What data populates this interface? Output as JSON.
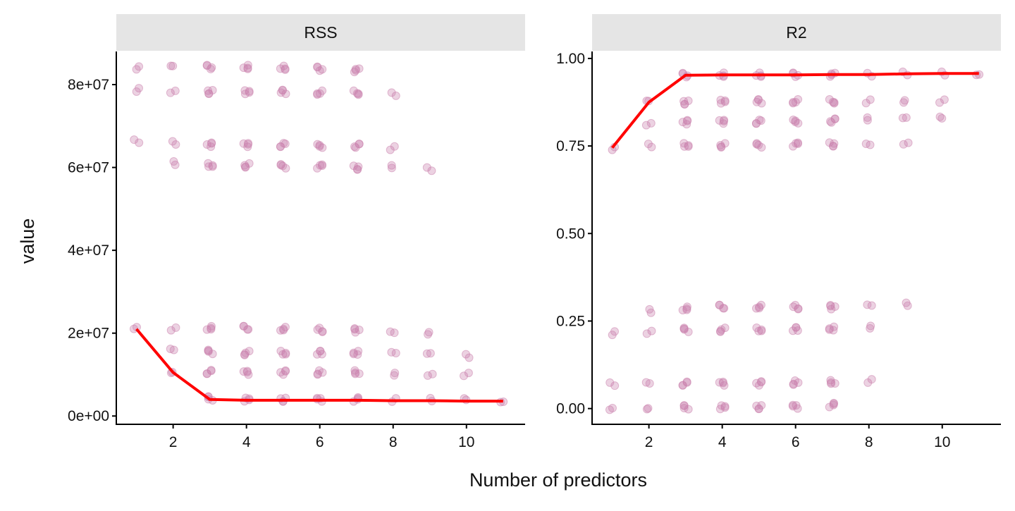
{
  "chart_data": {
    "type": "scatter",
    "xlabel": "Number of predictors",
    "ylabel": "value",
    "point_color": "#c97fab",
    "line_color": "#ff0000",
    "strip_color": "#e5e5e5",
    "panels": [
      {
        "title": "RSS",
        "xlim": [
          0.45,
          11.6
        ],
        "ylim": [
          -2000000.0,
          88000000.0
        ],
        "xticks": [
          2,
          4,
          6,
          8,
          10
        ],
        "xtick_labels": [
          "2",
          "4",
          "6",
          "8",
          "10"
        ],
        "yticks": [
          0,
          20000000.0,
          40000000.0,
          60000000.0,
          80000000.0
        ],
        "ytick_labels": [
          "0e+00",
          "2e+07",
          "4e+07",
          "6e+07",
          "8e+07"
        ],
        "best_line": {
          "x": [
            1,
            2,
            3,
            4,
            5,
            6,
            7,
            8,
            9,
            10,
            11
          ],
          "y": [
            21000000.0,
            10500000.0,
            4000000.0,
            3800000.0,
            3800000.0,
            3800000.0,
            3800000.0,
            3700000.0,
            3700000.0,
            3600000.0,
            3600000.0
          ]
        },
        "points": [
          [
            1,
            84200000.0
          ],
          [
            1,
            78700000.0
          ],
          [
            1,
            66200000.0
          ],
          [
            1,
            21500000.0
          ],
          [
            2,
            84200000.0
          ],
          [
            2,
            78500000.0
          ],
          [
            2,
            65800000.0
          ],
          [
            2,
            61000000.0
          ],
          [
            2,
            21200000.0
          ],
          [
            2,
            15800000.0
          ],
          [
            2,
            10800000.0
          ],
          [
            3,
            84200000.0
          ],
          [
            3,
            78300000.0
          ],
          [
            3,
            65500000.0
          ],
          [
            3,
            60500000.0
          ],
          [
            3,
            21200000.0
          ],
          [
            3,
            15500000.0
          ],
          [
            3,
            10700000.0
          ],
          [
            3,
            4200000.0
          ],
          [
            4,
            84200000.0
          ],
          [
            4,
            78200000.0
          ],
          [
            4,
            65500000.0
          ],
          [
            4,
            60500000.0
          ],
          [
            4,
            21200000.0
          ],
          [
            4,
            15200000.0
          ],
          [
            4,
            10500000.0
          ],
          [
            4,
            4000000.0
          ],
          [
            5,
            84000000.0
          ],
          [
            5,
            78200000.0
          ],
          [
            5,
            65500000.0
          ],
          [
            5,
            60300000.0
          ],
          [
            5,
            21000000.0
          ],
          [
            5,
            15200000.0
          ],
          [
            5,
            10500000.0
          ],
          [
            5,
            4000000.0
          ],
          [
            6,
            83800000.0
          ],
          [
            6,
            78000000.0
          ],
          [
            6,
            65200000.0
          ],
          [
            6,
            60300000.0
          ],
          [
            6,
            20800000.0
          ],
          [
            6,
            15200000.0
          ],
          [
            6,
            10500000.0
          ],
          [
            6,
            4000000.0
          ],
          [
            7,
            83500000.0
          ],
          [
            7,
            78000000.0
          ],
          [
            7,
            65200000.0
          ],
          [
            7,
            60000000.0
          ],
          [
            7,
            20700000.0
          ],
          [
            7,
            15200000.0
          ],
          [
            7,
            10500000.0
          ],
          [
            7,
            4000000.0
          ],
          [
            8,
            77800000.0
          ],
          [
            8,
            64700000.0
          ],
          [
            8,
            60000000.0
          ],
          [
            8,
            20500000.0
          ],
          [
            8,
            15000000.0
          ],
          [
            8,
            10300000.0
          ],
          [
            8,
            3800000.0
          ],
          [
            9,
            59500000.0
          ],
          [
            9,
            20200000.0
          ],
          [
            9,
            14800000.0
          ],
          [
            9,
            10200000.0
          ],
          [
            9,
            3800000.0
          ],
          [
            10,
            14500000.0
          ],
          [
            10,
            10200000.0
          ],
          [
            10,
            3800000.0
          ],
          [
            11,
            3700000.0
          ]
        ]
      },
      {
        "title": "R2",
        "xlim": [
          0.45,
          11.6
        ],
        "ylim": [
          -0.045,
          1.02
        ],
        "xticks": [
          2,
          4,
          6,
          8,
          10
        ],
        "xtick_labels": [
          "2",
          "4",
          "6",
          "8",
          "10"
        ],
        "yticks": [
          0,
          0.25,
          0.5,
          0.75,
          1.0
        ],
        "ytick_labels": [
          "0.00",
          "0.25",
          "0.50",
          "0.75",
          "1.00"
        ],
        "best_line": {
          "x": [
            1,
            2,
            3,
            4,
            5,
            6,
            7,
            8,
            9,
            10,
            11
          ],
          "y": [
            0.745,
            0.875,
            0.952,
            0.953,
            0.953,
            0.953,
            0.954,
            0.954,
            0.956,
            0.957,
            0.957
          ]
        },
        "points": [
          [
            1,
            0.745
          ],
          [
            1,
            0.215
          ],
          [
            1,
            0.068
          ],
          [
            1,
            0.002
          ],
          [
            2,
            0.875
          ],
          [
            2,
            0.815
          ],
          [
            2,
            0.75
          ],
          [
            2,
            0.278
          ],
          [
            2,
            0.22
          ],
          [
            2,
            0.07
          ],
          [
            2,
            0.003
          ],
          [
            3,
            0.952
          ],
          [
            3,
            0.875
          ],
          [
            3,
            0.818
          ],
          [
            3,
            0.752
          ],
          [
            3,
            0.285
          ],
          [
            3,
            0.225
          ],
          [
            3,
            0.072
          ],
          [
            3,
            0.003
          ],
          [
            4,
            0.953
          ],
          [
            4,
            0.877
          ],
          [
            4,
            0.82
          ],
          [
            4,
            0.752
          ],
          [
            4,
            0.29
          ],
          [
            4,
            0.225
          ],
          [
            4,
            0.072
          ],
          [
            4,
            0.004
          ],
          [
            5,
            0.953
          ],
          [
            5,
            0.877
          ],
          [
            5,
            0.82
          ],
          [
            5,
            0.752
          ],
          [
            5,
            0.29
          ],
          [
            5,
            0.225
          ],
          [
            5,
            0.072
          ],
          [
            5,
            0.005
          ],
          [
            6,
            0.953
          ],
          [
            6,
            0.877
          ],
          [
            6,
            0.82
          ],
          [
            6,
            0.755
          ],
          [
            6,
            0.29
          ],
          [
            6,
            0.226
          ],
          [
            6,
            0.074
          ],
          [
            6,
            0.006
          ],
          [
            7,
            0.954
          ],
          [
            7,
            0.877
          ],
          [
            7,
            0.822
          ],
          [
            7,
            0.755
          ],
          [
            7,
            0.29
          ],
          [
            7,
            0.228
          ],
          [
            7,
            0.075
          ],
          [
            7,
            0.01
          ],
          [
            8,
            0.955
          ],
          [
            8,
            0.878
          ],
          [
            8,
            0.825
          ],
          [
            8,
            0.758
          ],
          [
            8,
            0.292
          ],
          [
            8,
            0.235
          ],
          [
            8,
            0.078
          ],
          [
            9,
            0.956
          ],
          [
            9,
            0.88
          ],
          [
            9,
            0.827
          ],
          [
            9,
            0.76
          ],
          [
            9,
            0.296
          ],
          [
            10,
            0.957
          ],
          [
            10,
            0.88
          ],
          [
            10,
            0.828
          ],
          [
            11,
            0.957
          ]
        ]
      }
    ]
  }
}
